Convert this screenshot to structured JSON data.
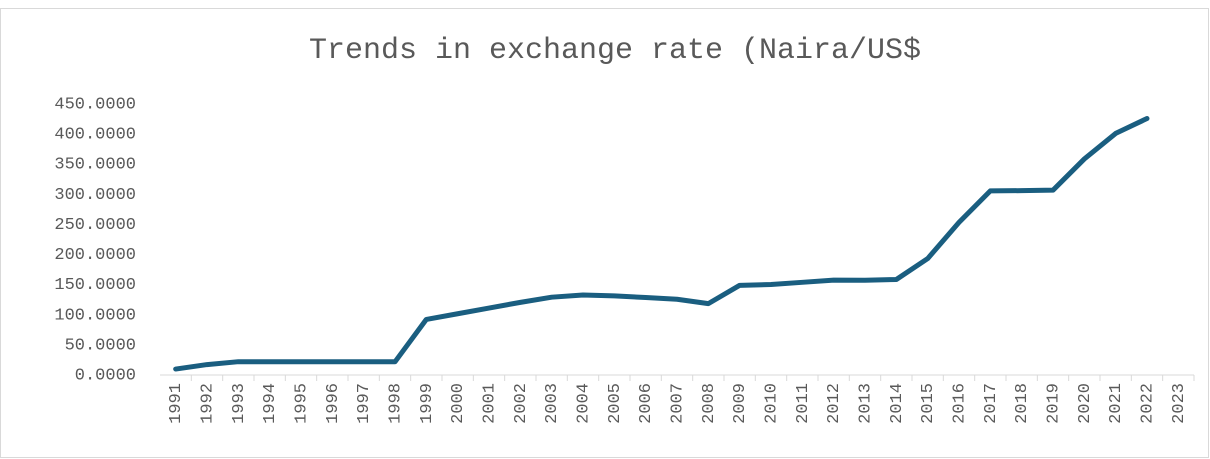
{
  "chart_data": {
    "type": "line",
    "title": "Trends in exchange rate (Naira/US$",
    "categories": [
      "1991",
      "1992",
      "1993",
      "1994",
      "1995",
      "1996",
      "1997",
      "1998",
      "1999",
      "2000",
      "2001",
      "2002",
      "2003",
      "2004",
      "2005",
      "2006",
      "2007",
      "2008",
      "2009",
      "2010",
      "2011",
      "2012",
      "2013",
      "2014",
      "2015",
      "2016",
      "2017",
      "2018",
      "2019",
      "2020",
      "2021",
      "2022",
      "2023"
    ],
    "values": [
      9.9,
      17.3,
      22.1,
      21.9,
      21.9,
      21.9,
      21.9,
      21.9,
      92.3,
      101.7,
      111.2,
      120.6,
      129.2,
      132.9,
      131.3,
      128.7,
      125.8,
      118.5,
      148.9,
      150.3,
      153.9,
      157.5,
      157.3,
      158.6,
      193.3,
      253.5,
      305.8,
      306.1,
      306.9,
      358.8,
      401.2,
      425.9,
      null
    ],
    "color": "#1a5e80",
    "ylim": [
      0,
      450
    ],
    "yticks": [
      {
        "value": 0,
        "label": "0.0000"
      },
      {
        "value": 50,
        "label": "50.0000"
      },
      {
        "value": 100,
        "label": "100.0000"
      },
      {
        "value": 150,
        "label": "150.0000"
      },
      {
        "value": 200,
        "label": "200.0000"
      },
      {
        "value": 250,
        "label": "250.0000"
      },
      {
        "value": 300,
        "label": "300.0000"
      },
      {
        "value": 350,
        "label": "350.0000"
      },
      {
        "value": 400,
        "label": "400.0000"
      },
      {
        "value": 450,
        "label": "450.0000"
      }
    ],
    "grid": false
  }
}
